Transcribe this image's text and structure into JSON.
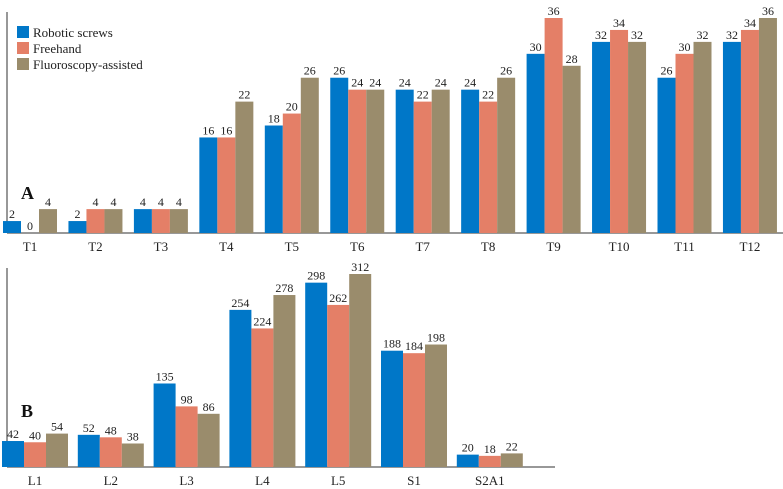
{
  "chart_data": [
    {
      "type": "bar",
      "panel_label": "A",
      "categories": [
        "T1",
        "T2",
        "T3",
        "T4",
        "T5",
        "T6",
        "T7",
        "T8",
        "T9",
        "T10",
        "T11",
        "T12"
      ],
      "series": [
        {
          "name": "Robotic screws",
          "color": "#0077c8",
          "values": [
            2,
            2,
            4,
            16,
            18,
            26,
            24,
            24,
            30,
            32,
            26,
            32
          ]
        },
        {
          "name": "Freehand",
          "color": "#e47f67",
          "values": [
            0,
            4,
            4,
            16,
            20,
            24,
            22,
            22,
            36,
            34,
            30,
            34
          ]
        },
        {
          "name": "Fluoroscopy-assisted",
          "color": "#9a8c6c",
          "values": [
            4,
            4,
            4,
            22,
            26,
            24,
            24,
            26,
            28,
            32,
            32,
            36
          ]
        }
      ],
      "ylim": [
        0,
        36
      ],
      "legend": "top-left",
      "grid": false
    },
    {
      "type": "bar",
      "panel_label": "B",
      "categories": [
        "L1",
        "L2",
        "L3",
        "L4",
        "L5",
        "S1",
        "S2A1"
      ],
      "series": [
        {
          "name": "Robotic screws",
          "color": "#0077c8",
          "values": [
            42,
            52,
            135,
            254,
            298,
            188,
            20
          ]
        },
        {
          "name": "Freehand",
          "color": "#e47f67",
          "values": [
            40,
            48,
            98,
            224,
            262,
            184,
            18
          ]
        },
        {
          "name": "Fluoroscopy-assisted",
          "color": "#9a8c6c",
          "values": [
            54,
            38,
            86,
            278,
            312,
            198,
            22
          ]
        }
      ],
      "ylim": [
        0,
        312
      ],
      "grid": false
    }
  ]
}
